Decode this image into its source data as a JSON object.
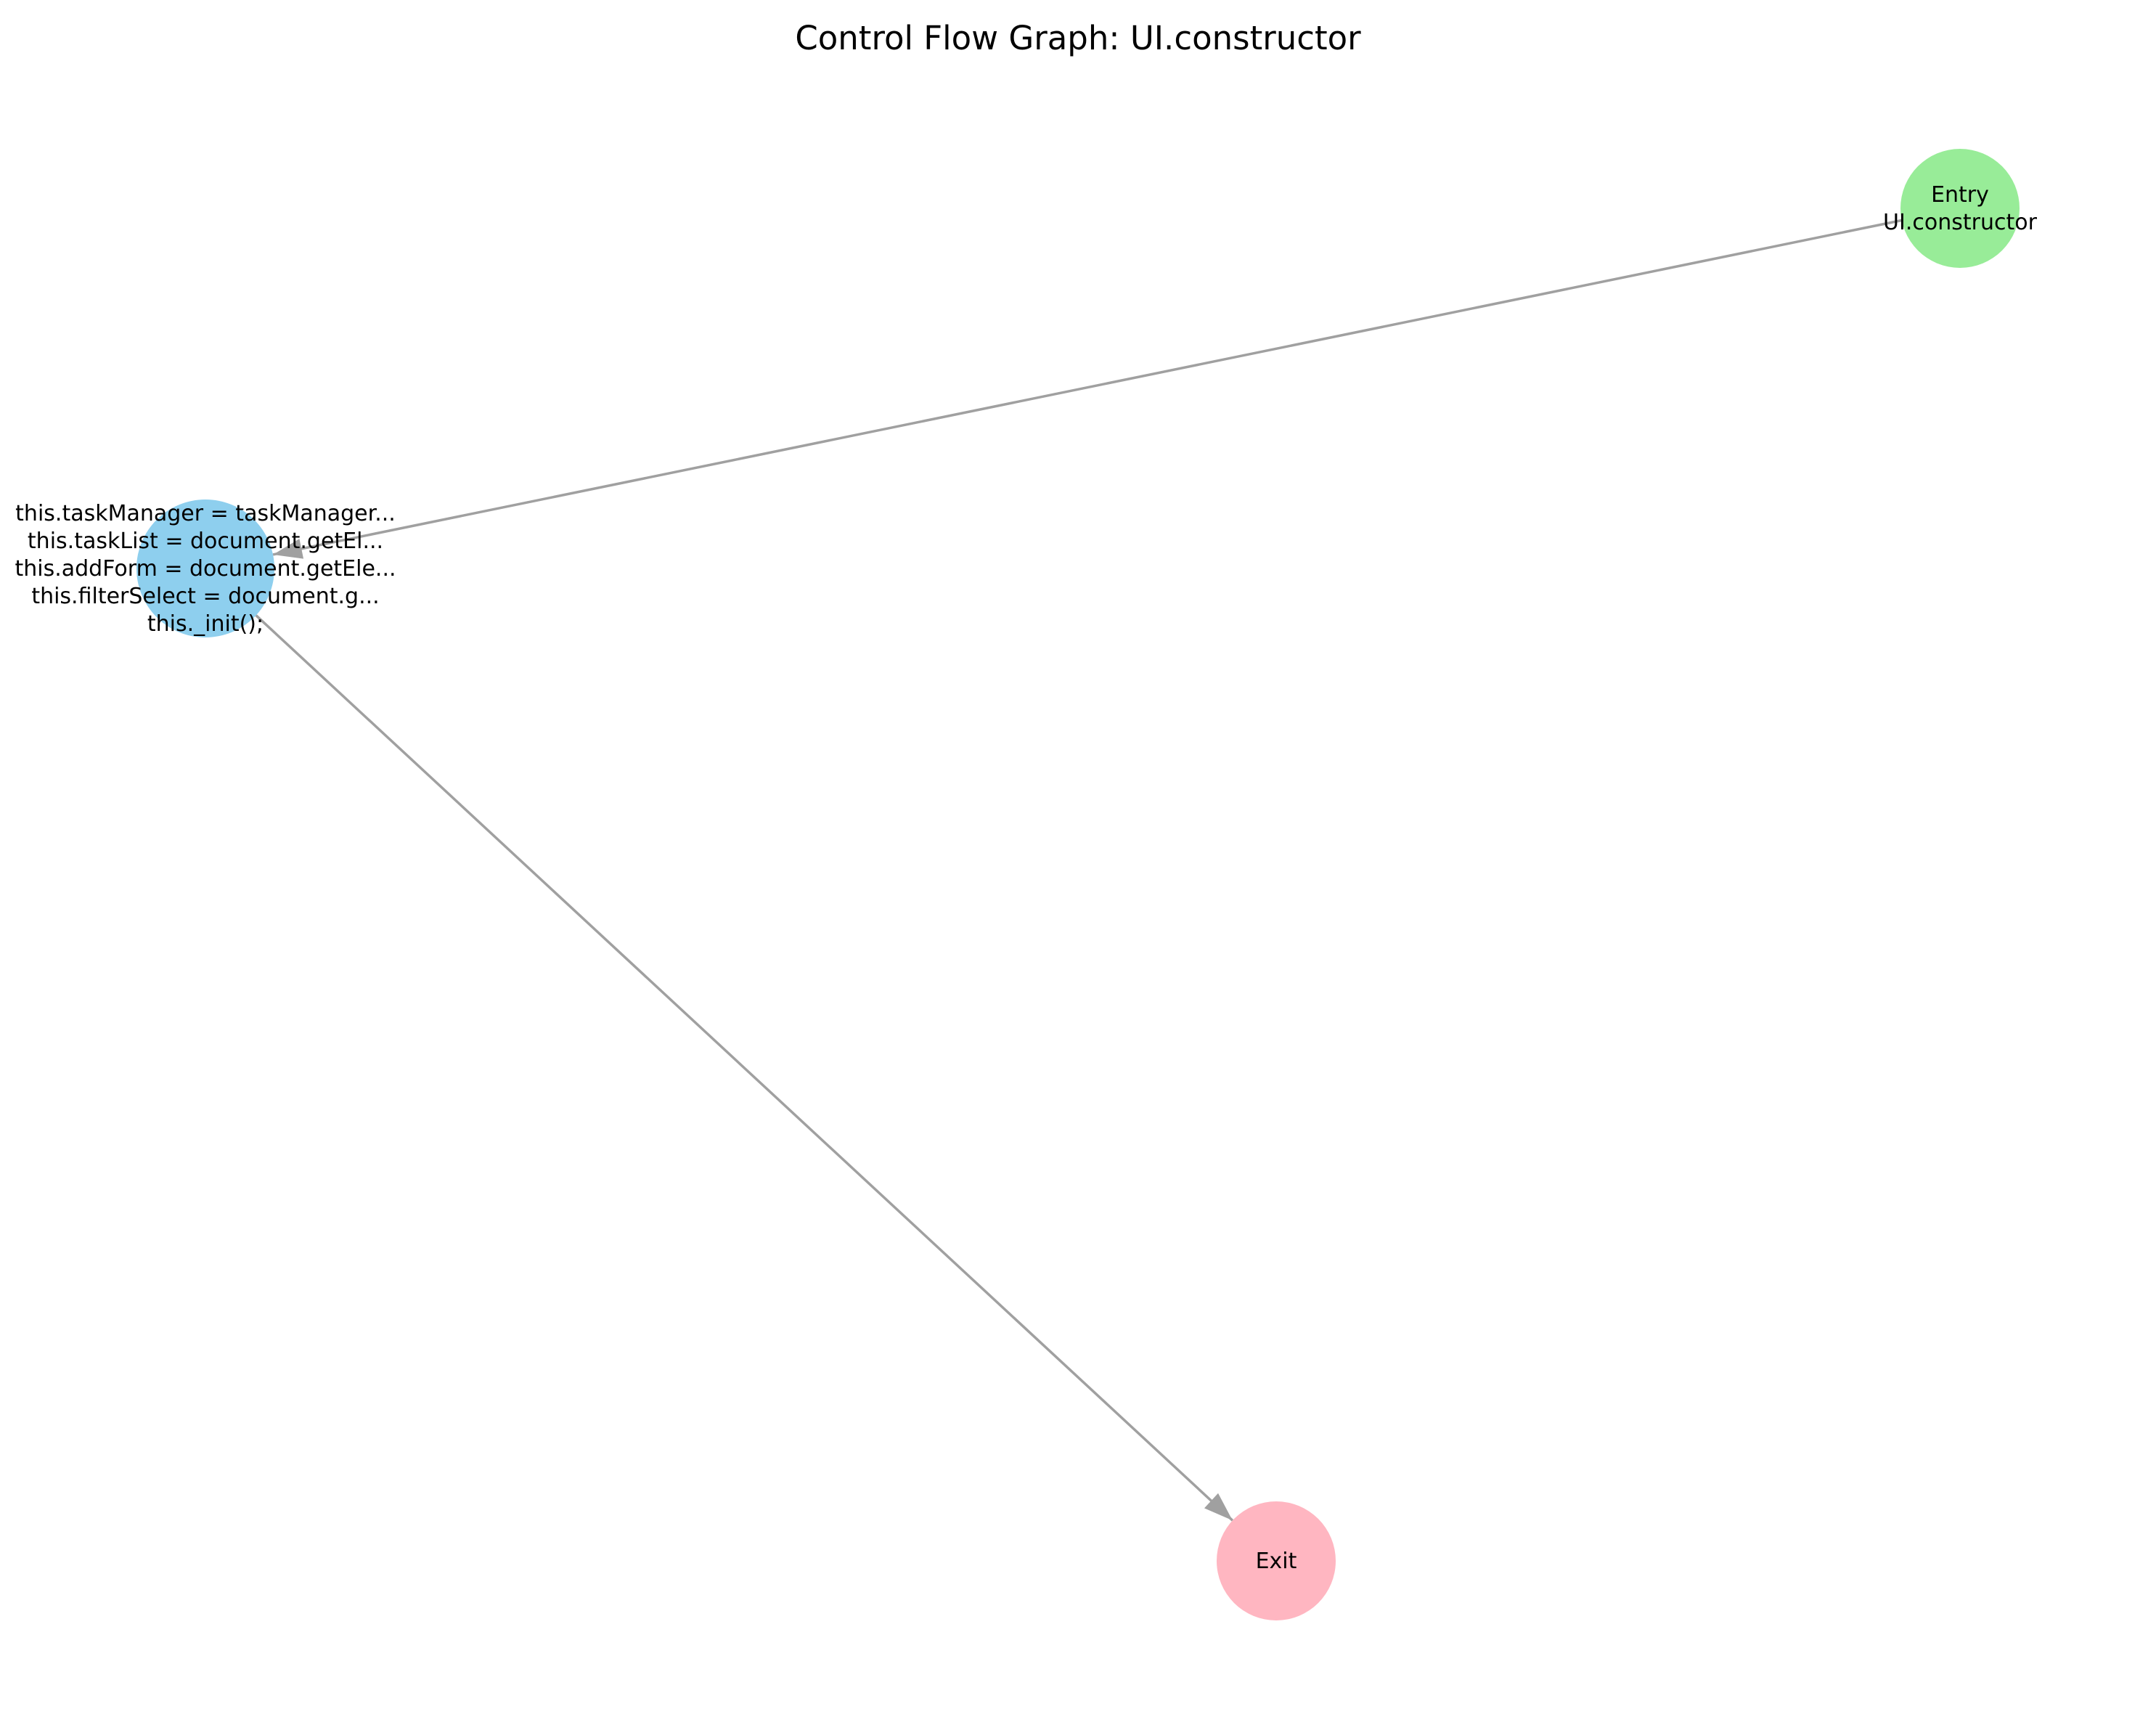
{
  "title": "Control Flow Graph: UI.constructor",
  "colors": {
    "entry": "#98ec98",
    "block": "#8ecfee",
    "exit": "#ffb6c1",
    "edge": "#a0a0a0"
  },
  "nodes": [
    {
      "id": "entry",
      "kind": "entry",
      "lines": [
        "Entry",
        "UI.constructor"
      ]
    },
    {
      "id": "block",
      "kind": "block",
      "lines": [
        "this.taskManager = taskManager...",
        "this.taskList = document.getEl...",
        "this.addForm = document.getEle...",
        "this.filterSelect = document.g...",
        "this._init();"
      ]
    },
    {
      "id": "exit",
      "kind": "exit",
      "lines": [
        "Exit"
      ]
    }
  ],
  "edges": [
    {
      "from": "entry",
      "to": "block"
    },
    {
      "from": "block",
      "to": "exit"
    }
  ]
}
